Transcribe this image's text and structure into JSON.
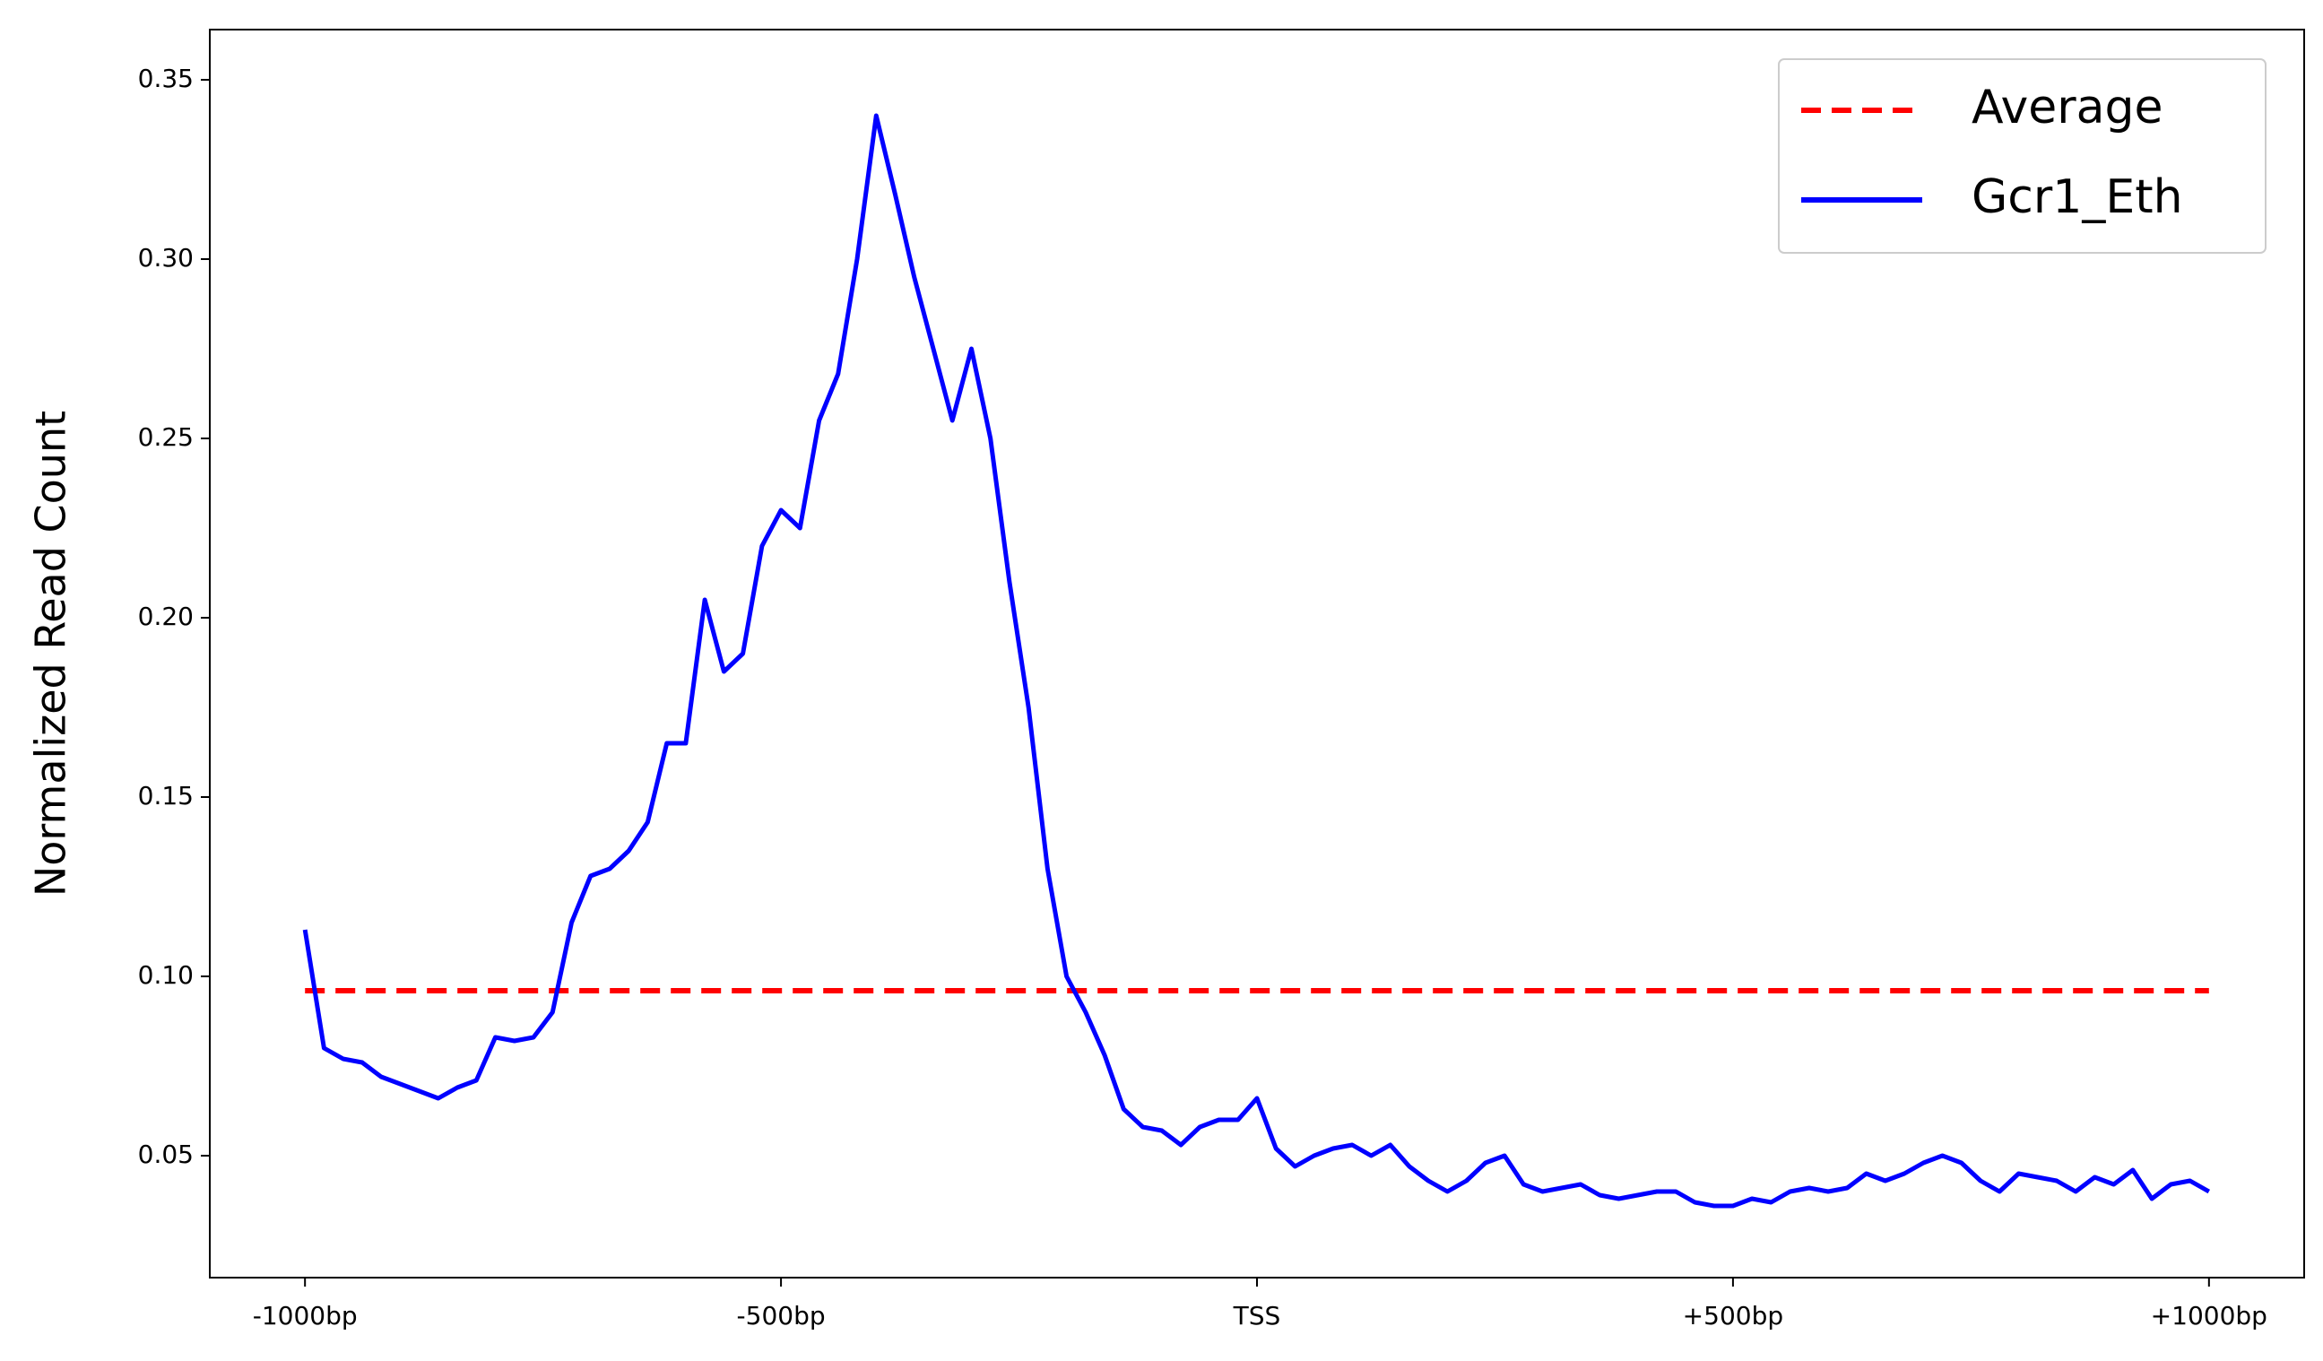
{
  "chart_data": {
    "type": "line",
    "ylabel": "Normalized Read Count",
    "x": [
      -1000,
      -980,
      -960,
      -940,
      -920,
      -900,
      -880,
      -860,
      -840,
      -820,
      -800,
      -780,
      -760,
      -740,
      -720,
      -700,
      -680,
      -660,
      -640,
      -620,
      -600,
      -580,
      -560,
      -540,
      -520,
      -500,
      -480,
      -460,
      -440,
      -420,
      -400,
      -380,
      -360,
      -340,
      -320,
      -300,
      -280,
      -260,
      -240,
      -220,
      -200,
      -180,
      -160,
      -140,
      -120,
      -100,
      -80,
      -60,
      -40,
      -20,
      0,
      20,
      40,
      60,
      80,
      100,
      120,
      140,
      160,
      180,
      200,
      220,
      240,
      260,
      280,
      300,
      320,
      340,
      360,
      380,
      400,
      420,
      440,
      460,
      480,
      500,
      520,
      540,
      560,
      580,
      600,
      620,
      640,
      660,
      680,
      700,
      720,
      740,
      760,
      780,
      800,
      820,
      840,
      860,
      880,
      900,
      920,
      940,
      960,
      980,
      1000
    ],
    "series": [
      {
        "name": "Average",
        "color": "#ff0000",
        "dashed": true,
        "values": [
          0.096,
          0.096,
          0.096,
          0.096,
          0.096,
          0.096,
          0.096,
          0.096,
          0.096,
          0.096,
          0.096,
          0.096,
          0.096,
          0.096,
          0.096,
          0.096,
          0.096,
          0.096,
          0.096,
          0.096,
          0.096,
          0.096,
          0.096,
          0.096,
          0.096,
          0.096,
          0.096,
          0.096,
          0.096,
          0.096,
          0.096,
          0.096,
          0.096,
          0.096,
          0.096,
          0.096,
          0.096,
          0.096,
          0.096,
          0.096,
          0.096,
          0.096,
          0.096,
          0.096,
          0.096,
          0.096,
          0.096,
          0.096,
          0.096,
          0.096,
          0.096,
          0.096,
          0.096,
          0.096,
          0.096,
          0.096,
          0.096,
          0.096,
          0.096,
          0.096,
          0.096,
          0.096,
          0.096,
          0.096,
          0.096,
          0.096,
          0.096,
          0.096,
          0.096,
          0.096,
          0.096,
          0.096,
          0.096,
          0.096,
          0.096,
          0.096,
          0.096,
          0.096,
          0.096,
          0.096,
          0.096,
          0.096,
          0.096,
          0.096,
          0.096,
          0.096,
          0.096,
          0.096,
          0.096,
          0.096,
          0.096,
          0.096,
          0.096,
          0.096,
          0.096,
          0.096,
          0.096,
          0.096,
          0.096,
          0.096,
          0.096
        ]
      },
      {
        "name": "Gcr1_Eth",
        "color": "#0000ff",
        "dashed": false,
        "values": [
          0.113,
          0.08,
          0.077,
          0.076,
          0.072,
          0.07,
          0.068,
          0.066,
          0.069,
          0.071,
          0.083,
          0.082,
          0.083,
          0.09,
          0.115,
          0.128,
          0.13,
          0.135,
          0.143,
          0.165,
          0.165,
          0.205,
          0.185,
          0.19,
          0.22,
          0.23,
          0.225,
          0.255,
          0.268,
          0.3,
          0.34,
          0.318,
          0.295,
          0.275,
          0.255,
          0.275,
          0.25,
          0.21,
          0.175,
          0.13,
          0.1,
          0.09,
          0.078,
          0.063,
          0.058,
          0.057,
          0.053,
          0.058,
          0.06,
          0.06,
          0.066,
          0.052,
          0.047,
          0.05,
          0.052,
          0.053,
          0.05,
          0.053,
          0.047,
          0.043,
          0.04,
          0.043,
          0.048,
          0.05,
          0.042,
          0.04,
          0.041,
          0.042,
          0.039,
          0.038,
          0.039,
          0.04,
          0.04,
          0.037,
          0.036,
          0.036,
          0.038,
          0.037,
          0.04,
          0.041,
          0.04,
          0.041,
          0.045,
          0.043,
          0.045,
          0.048,
          0.05,
          0.048,
          0.043,
          0.04,
          0.045,
          0.044,
          0.043,
          0.04,
          0.044,
          0.042,
          0.046,
          0.038,
          0.042,
          0.043,
          0.04
        ]
      }
    ],
    "xlim": [
      -1100,
      1100
    ],
    "xticks": [
      {
        "value": -1000,
        "label": "-1000bp"
      },
      {
        "value": -500,
        "label": "-500bp"
      },
      {
        "value": 0,
        "label": "TSS"
      },
      {
        "value": 500,
        "label": "+500bp"
      },
      {
        "value": 1000,
        "label": "+1000bp"
      }
    ],
    "ylim": [
      0.016,
      0.364
    ],
    "yticks": [
      {
        "value": 0.05,
        "label": "0.05"
      },
      {
        "value": 0.1,
        "label": "0.10"
      },
      {
        "value": 0.15,
        "label": "0.15"
      },
      {
        "value": 0.2,
        "label": "0.20"
      },
      {
        "value": 0.25,
        "label": "0.25"
      },
      {
        "value": 0.3,
        "label": "0.30"
      },
      {
        "value": 0.35,
        "label": "0.35"
      }
    ],
    "grid": false,
    "legend": "upper right"
  }
}
